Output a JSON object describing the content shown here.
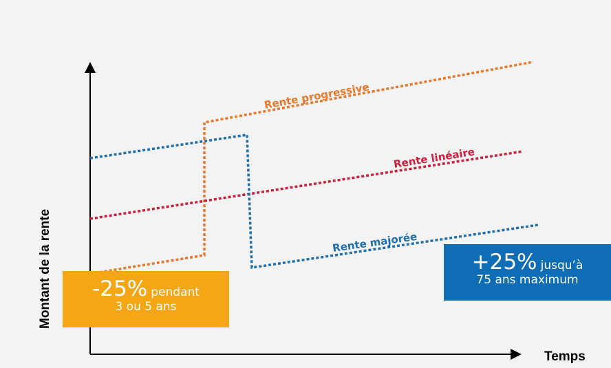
{
  "axes": {
    "y_label": "Montant de la rente",
    "x_label": "Temps"
  },
  "series_labels": {
    "progressive": "Rente progressive",
    "lineaire": "Rente linéaire",
    "majoree": "Rente majorée"
  },
  "callouts": {
    "minus": {
      "big": "-25%",
      "small": "pendant",
      "line2": "3 ou 5 ans"
    },
    "plus": {
      "big": "+25%",
      "small": "jusqu’à",
      "line2": "75 ans maximum"
    }
  },
  "colors": {
    "progressive": "#e8782a",
    "lineaire": "#cc1f3c",
    "majoree": "#1f6fae",
    "callout_minus_bg": "#f5a615",
    "callout_plus_bg": "#0f6db6",
    "axis": "#000000",
    "background": "#f3f3f3"
  }
}
